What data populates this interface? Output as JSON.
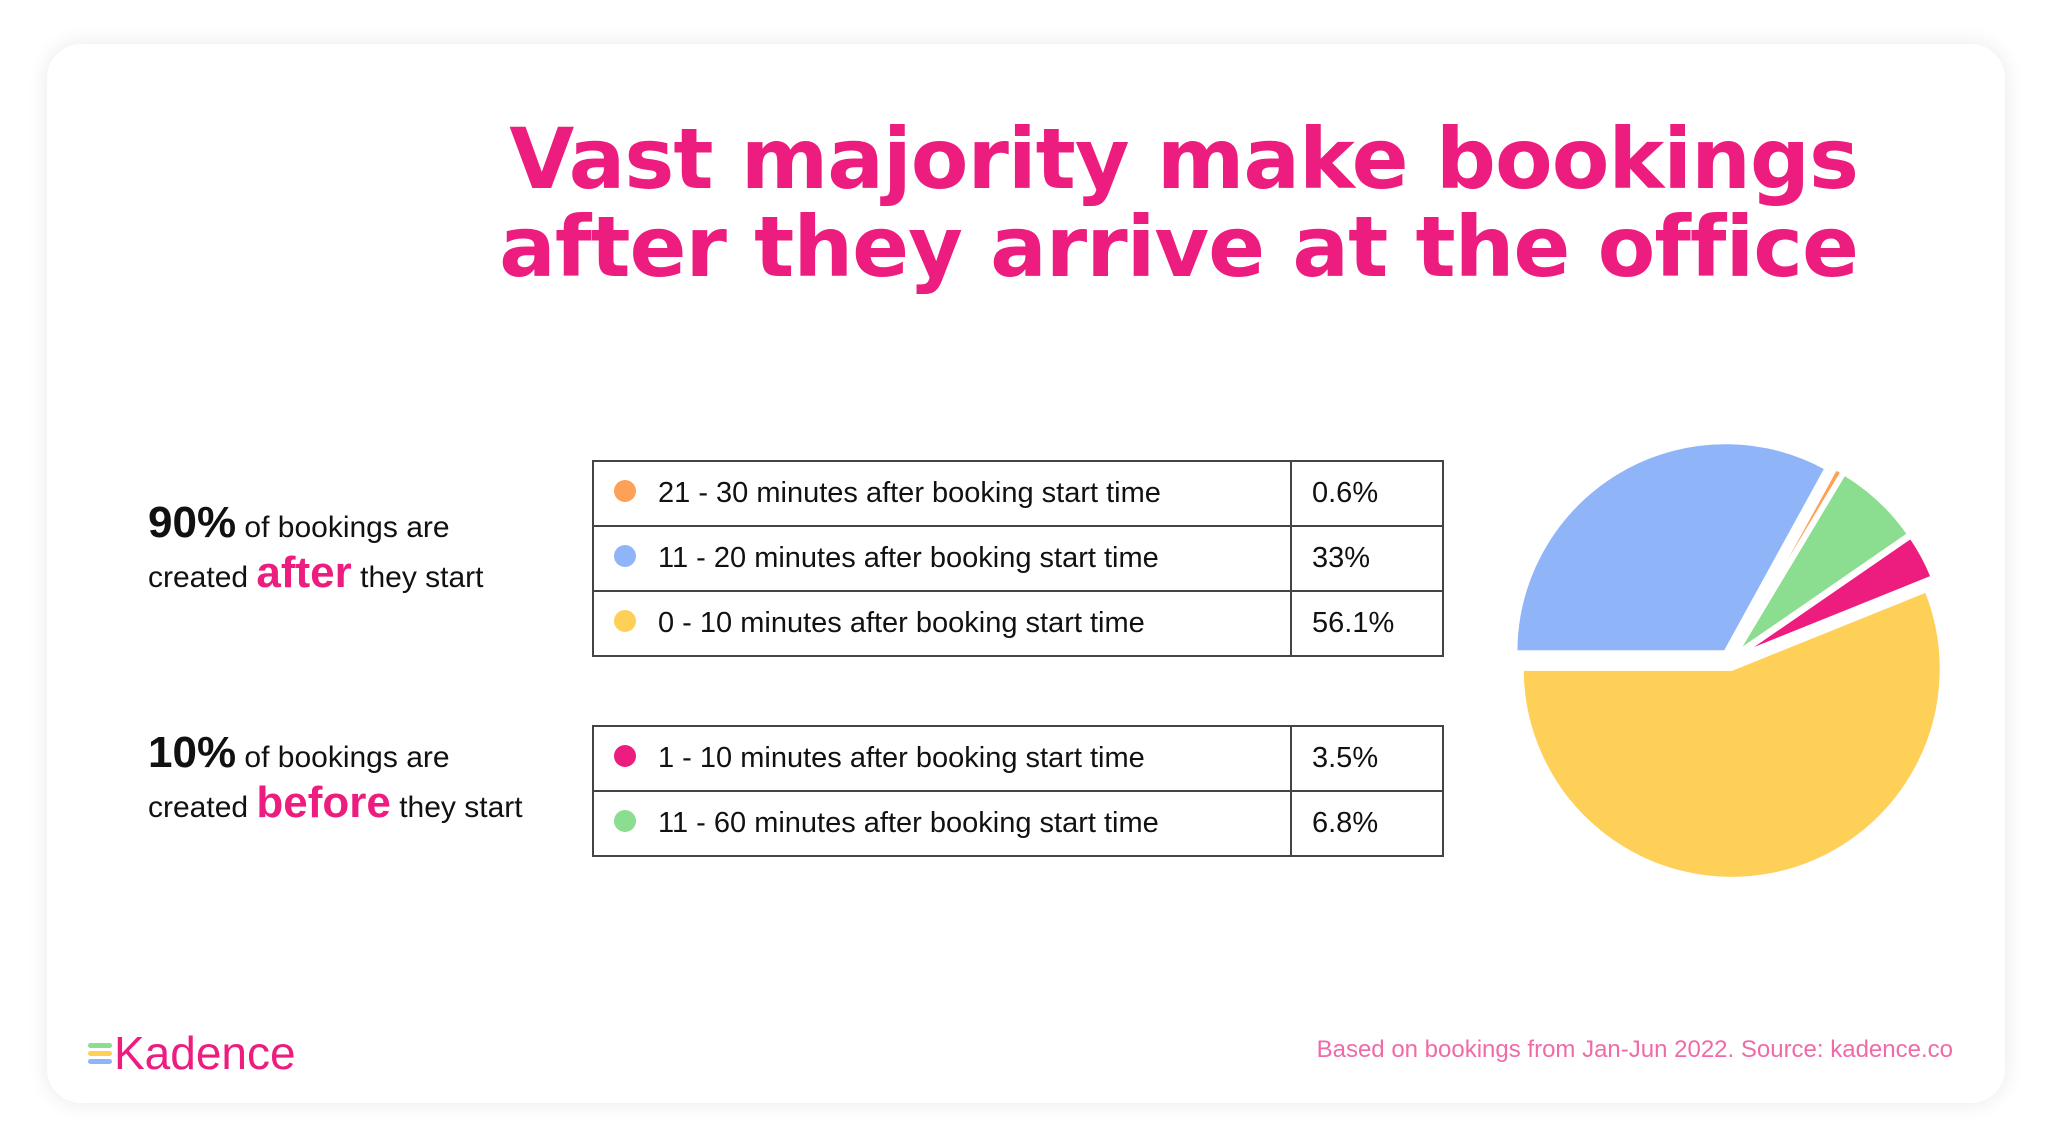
{
  "title": {
    "line1": "Vast majority make bookings",
    "line2": "after they arrive at the office"
  },
  "after_group": {
    "pct": "90%",
    "text1": " of bookings are",
    "text2": "created ",
    "highlight": "after",
    "text3": " they start"
  },
  "before_group": {
    "pct": "10%",
    "text1": " of bookings are",
    "text2": "created ",
    "highlight": "before",
    "text3": " they start"
  },
  "table_after": [
    {
      "label": "21 - 30 minutes after booking start time",
      "value": "0.6%",
      "color": "#FFA057"
    },
    {
      "label": "11 - 20 minutes after booking start time",
      "value": "33%",
      "color": "#8FB4F7"
    },
    {
      "label": "0 - 10 minutes after booking start time",
      "value": "56.1%",
      "color": "#FFD057"
    }
  ],
  "table_before": [
    {
      "label": "1 - 10 minutes after booking start time",
      "value": "3.5%",
      "color": "#ED1C7F"
    },
    {
      "label": "11 - 60 minutes after booking start time",
      "value": "6.8%",
      "color": "#8BDD8F"
    }
  ],
  "chart_data": {
    "type": "pie",
    "slices": [
      {
        "label": "11 - 20 minutes after booking start time",
        "value": 33,
        "color": "#8FB4F7"
      },
      {
        "label": "21 - 30 minutes after booking start time",
        "value": 0.6,
        "color": "#FFA057"
      },
      {
        "label": "11 - 60 minutes after booking start time",
        "value": 6.8,
        "color": "#8BDD8F"
      },
      {
        "label": "1 - 10 minutes after booking start time",
        "value": 3.5,
        "color": "#ED1C7F"
      },
      {
        "label": "0 - 10 minutes after booking start time",
        "value": 56.1,
        "color": "#FFD057"
      }
    ],
    "exploded": true
  },
  "logo": {
    "text": "Kadence"
  },
  "footer": "Based on bookings from Jan-Jun 2022. Source: kadence.co"
}
